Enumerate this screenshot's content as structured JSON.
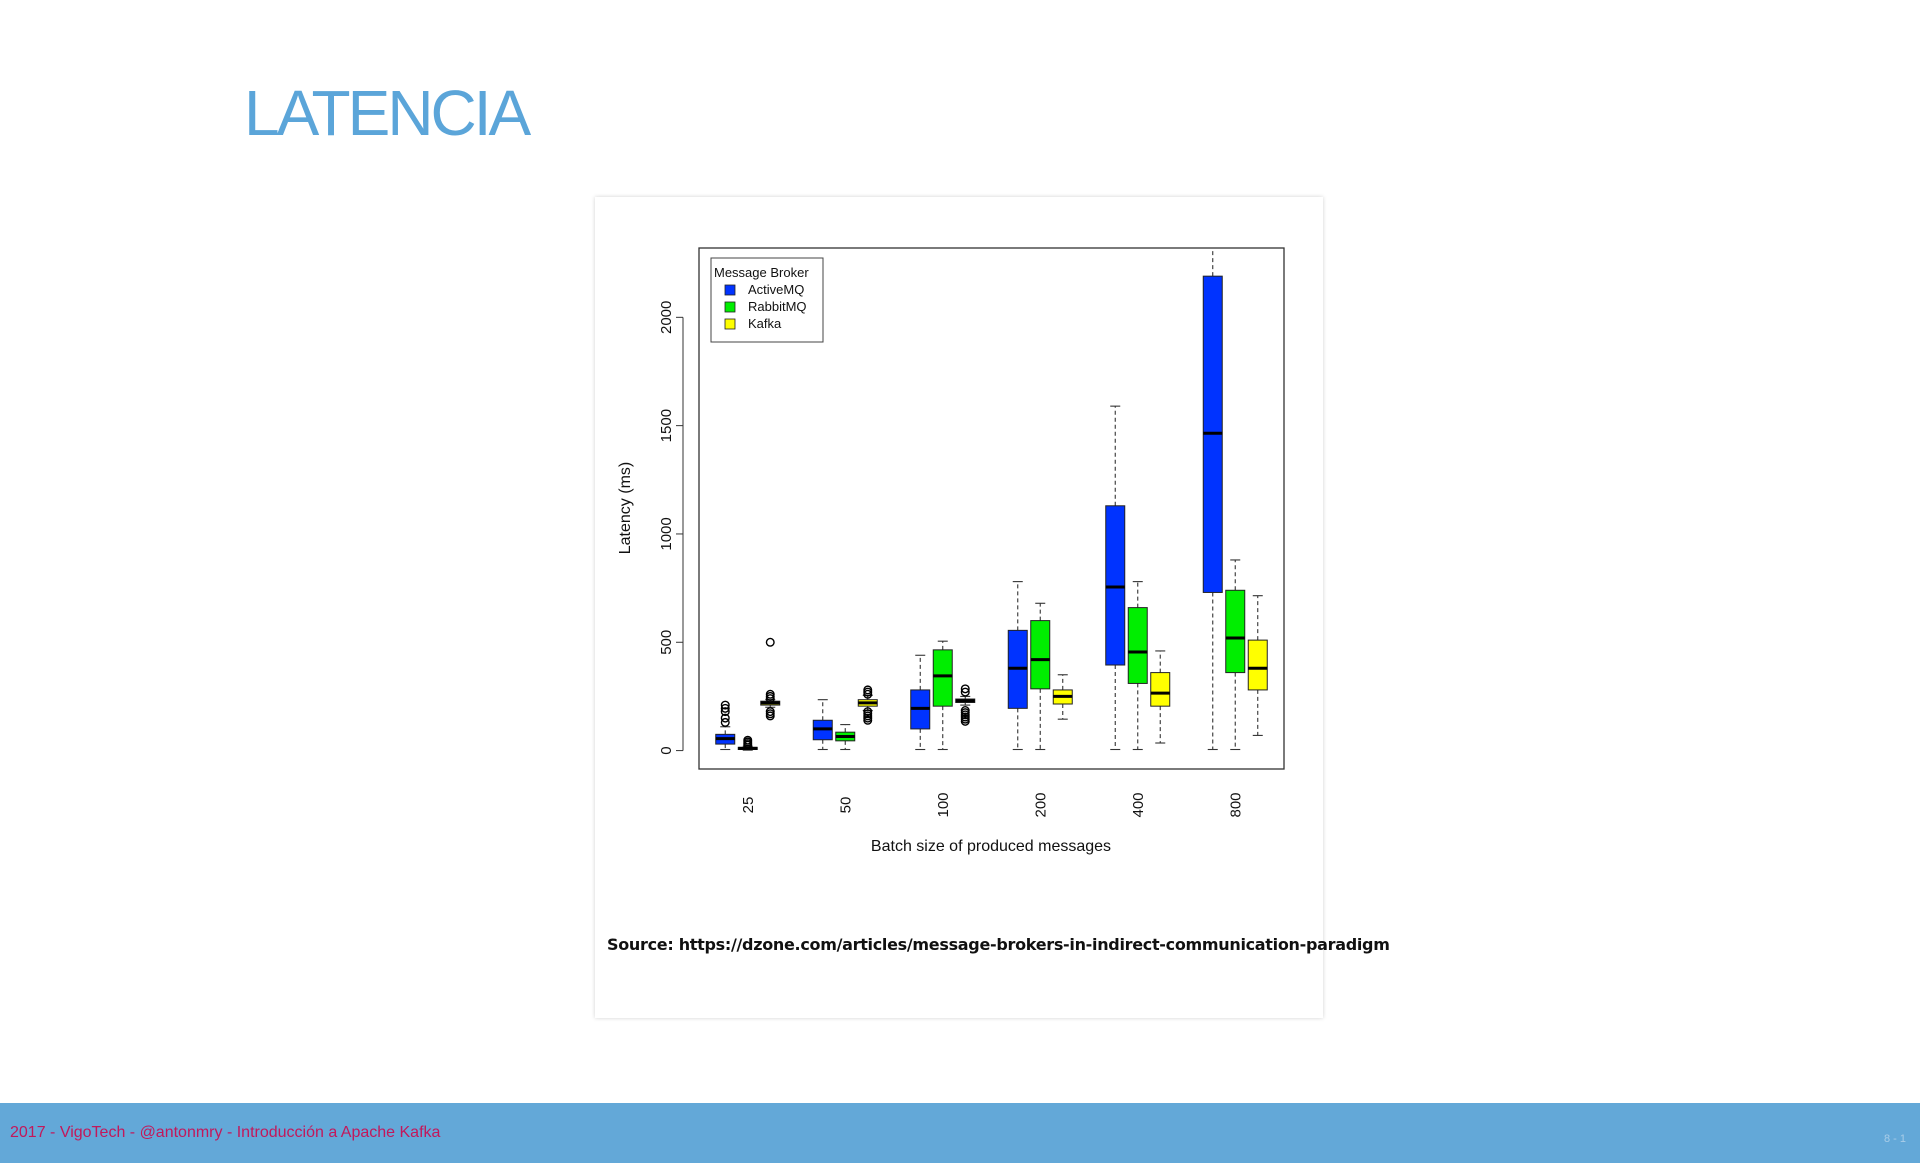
{
  "slide": {
    "title": "LATENCIA"
  },
  "footer": {
    "text": "2017 - VigoTech - @antonmry - Introducción a Apache Kafka",
    "page": "8 - 1"
  },
  "figure": {
    "source": "Source: https://dzone.com/articles/message-brokers-in-indirect-communication-paradigm"
  },
  "chart_data": {
    "type": "boxplot",
    "xlabel": "Batch size of produced messages",
    "ylabel": "Latency (ms)",
    "ylim": [
      -85,
      2320
    ],
    "yticks": [
      0,
      500,
      1000,
      1500,
      2000
    ],
    "categories": [
      "25",
      "50",
      "100",
      "200",
      "400",
      "800"
    ],
    "legend": {
      "title": "Message Broker",
      "position": "top-left"
    },
    "grid": false,
    "series": [
      {
        "name": "ActiveMQ",
        "color": "#0033ff",
        "boxes": [
          {
            "min": 5,
            "q1": 30,
            "median": 55,
            "q3": 75,
            "max": 110,
            "outliers": [
              130,
              150,
              180,
              195,
              210
            ]
          },
          {
            "min": 5,
            "q1": 50,
            "median": 100,
            "q3": 140,
            "max": 235,
            "outliers": []
          },
          {
            "min": 5,
            "q1": 100,
            "median": 195,
            "q3": 280,
            "max": 440,
            "outliers": []
          },
          {
            "min": 5,
            "q1": 195,
            "median": 380,
            "q3": 555,
            "max": 780,
            "outliers": []
          },
          {
            "min": 5,
            "q1": 395,
            "median": 755,
            "q3": 1130,
            "max": 1590,
            "outliers": []
          },
          {
            "min": 5,
            "q1": 730,
            "median": 1465,
            "q3": 2190,
            "max": 2320,
            "outliers": []
          }
        ]
      },
      {
        "name": "RabbitMQ",
        "color": "#00ee00",
        "boxes": [
          {
            "min": 2,
            "q1": 5,
            "median": 10,
            "q3": 15,
            "max": 20,
            "outliers": [
              25,
              32,
              40,
              48
            ]
          },
          {
            "min": 5,
            "q1": 45,
            "median": 65,
            "q3": 85,
            "max": 120,
            "outliers": []
          },
          {
            "min": 5,
            "q1": 205,
            "median": 345,
            "q3": 465,
            "max": 505,
            "outliers": []
          },
          {
            "min": 5,
            "q1": 285,
            "median": 420,
            "q3": 600,
            "max": 680,
            "outliers": []
          },
          {
            "min": 5,
            "q1": 310,
            "median": 455,
            "q3": 660,
            "max": 780,
            "outliers": []
          },
          {
            "min": 5,
            "q1": 360,
            "median": 520,
            "q3": 740,
            "max": 880,
            "outliers": []
          }
        ]
      },
      {
        "name": "Kafka",
        "color": "#ffff00",
        "boxes": [
          {
            "min": 200,
            "q1": 210,
            "median": 220,
            "q3": 228,
            "max": 235,
            "outliers": [
              160,
              170,
              180,
              240,
              250,
              260,
              500
            ]
          },
          {
            "min": 185,
            "q1": 205,
            "median": 220,
            "q3": 235,
            "max": 255,
            "outliers": [
              140,
              150,
              160,
              170,
              180,
              260,
              270,
              280
            ]
          },
          {
            "min": 210,
            "q1": 222,
            "median": 230,
            "q3": 238,
            "max": 250,
            "outliers": [
              135,
              145,
              155,
              165,
              175,
              185,
              270,
              285
            ]
          },
          {
            "min": 145,
            "q1": 215,
            "median": 250,
            "q3": 280,
            "max": 350,
            "outliers": []
          },
          {
            "min": 35,
            "q1": 205,
            "median": 265,
            "q3": 360,
            "max": 460,
            "outliers": []
          },
          {
            "min": 70,
            "q1": 280,
            "median": 380,
            "q3": 510,
            "max": 715,
            "outliers": []
          }
        ]
      }
    ]
  }
}
